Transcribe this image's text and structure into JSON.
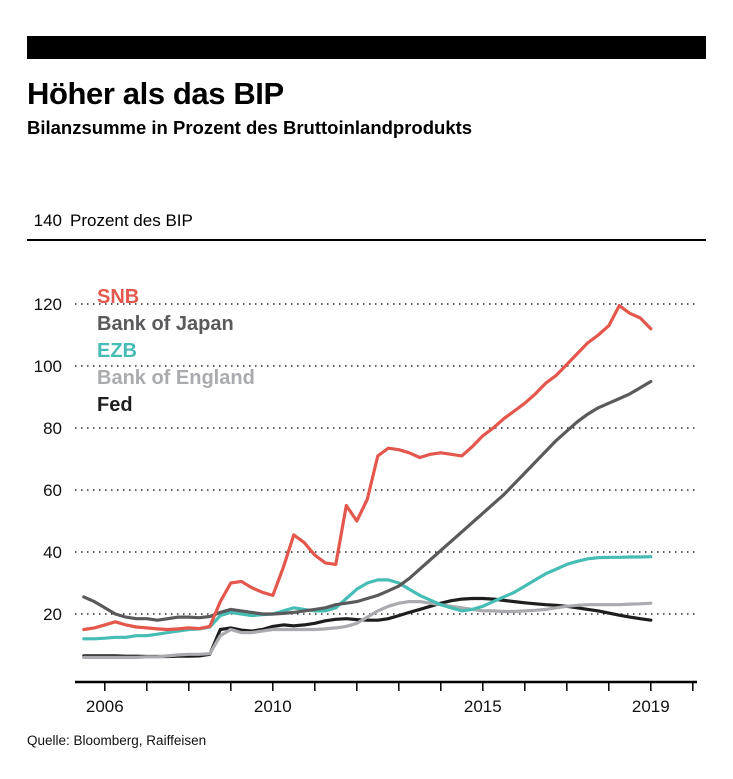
{
  "header": {
    "title": "Höher als das BIP",
    "subtitle": "Bilanzsumme in Prozent des Bruttoinlandprodukts"
  },
  "source": "Quelle: Bloomberg, Raiffeisen",
  "chart_data": {
    "type": "line",
    "title": "Höher als das BIP",
    "subtitle": "Bilanzsumme in Prozent des Bruttoinlandprodukts",
    "ylabel_top_tick": "140",
    "ylabel": "Prozent des BIP",
    "xlabel": "",
    "ylim": [
      0,
      140
    ],
    "yticks": [
      20,
      40,
      60,
      80,
      100,
      120,
      140
    ],
    "xticks": [
      2006,
      2010,
      2015,
      2019
    ],
    "x_axis_range": [
      2005.29,
      2020.1
    ],
    "x_start": 2005.5,
    "x_step": 0.25,
    "grid": "dotted horizontal lines",
    "legend_position": "top-left inside plot",
    "series": [
      {
        "name": "SNB",
        "color": "#e4574c",
        "values": [
          15,
          15.5,
          16.5,
          17.5,
          16.5,
          15.8,
          15.5,
          15.2,
          15,
          15.2,
          15.5,
          15.3,
          16,
          24,
          30,
          30.5,
          28.5,
          27,
          26,
          35,
          45.5,
          43,
          39,
          36.5,
          36,
          55,
          50,
          57,
          71,
          73.5,
          73,
          72,
          70.5,
          71.5,
          72,
          71.5,
          71,
          74,
          77.5,
          80,
          83,
          85.5,
          88,
          91,
          94.5,
          97,
          100.5,
          104,
          107.5,
          110,
          113,
          119.5,
          117,
          115.5,
          112
        ]
      },
      {
        "name": "Bank of Japan",
        "color": "#5a5a5c",
        "values": [
          25.5,
          24,
          22,
          20,
          19,
          18.5,
          18.5,
          18,
          18.5,
          19,
          19,
          18.8,
          19.2,
          20.5,
          21.5,
          21,
          20.5,
          20,
          20,
          20.2,
          20.5,
          21,
          21.5,
          22,
          23,
          23.5,
          24,
          25,
          26,
          27.5,
          29,
          31.5,
          34.5,
          37.5,
          40.5,
          43.5,
          46.5,
          49.5,
          52.5,
          55.5,
          58.5,
          62,
          65.5,
          69,
          72.5,
          76,
          79,
          82,
          84.5,
          86.5,
          88,
          89.5,
          91,
          93,
          95
        ]
      },
      {
        "name": "EZB",
        "color": "#46bdb4",
        "values": [
          12,
          12,
          12.2,
          12.5,
          12.5,
          13,
          13,
          13.5,
          14,
          14.5,
          15,
          15.2,
          15.8,
          19.5,
          20.5,
          20,
          19.5,
          19.8,
          20,
          21,
          22,
          21.5,
          21,
          21,
          22,
          25,
          28,
          30,
          31,
          31,
          30,
          28,
          26,
          24.5,
          23,
          22,
          21,
          21.5,
          22.5,
          24,
          25.5,
          27,
          29,
          31,
          33,
          34.5,
          36,
          37,
          37.8,
          38.2,
          38.3,
          38.3,
          38.4,
          38.4,
          38.5
        ]
      },
      {
        "name": "Bank of England",
        "color": "#a9abae",
        "values": [
          6,
          6,
          6,
          6,
          6,
          6,
          6.2,
          6.2,
          6.5,
          6.8,
          7,
          7,
          7.2,
          13,
          15,
          14,
          14,
          14.5,
          15,
          15,
          15,
          15,
          15,
          15.2,
          15.5,
          16,
          17,
          19,
          21,
          22.5,
          23.5,
          24,
          24,
          23.5,
          23,
          22.5,
          22,
          21.5,
          21,
          21,
          20.8,
          20.8,
          21,
          21.2,
          21.5,
          22,
          22.5,
          22.8,
          23,
          23,
          23,
          23,
          23.2,
          23.3,
          23.5
        ]
      },
      {
        "name": "Fed",
        "color": "#1e1e1e",
        "values": [
          6.5,
          6.5,
          6.5,
          6.5,
          6.4,
          6.4,
          6.3,
          6.3,
          6.3,
          6.4,
          6.4,
          6.5,
          7,
          15,
          15.5,
          14.8,
          14.5,
          15,
          16,
          16.5,
          16.2,
          16.5,
          17,
          17.8,
          18.3,
          18.5,
          18.2,
          18,
          18,
          18.5,
          19.5,
          20.5,
          21.5,
          22.5,
          23.5,
          24.3,
          24.8,
          25,
          25,
          24.8,
          24.4,
          24,
          23.6,
          23.3,
          23,
          22.8,
          22.5,
          22,
          21.5,
          21,
          20.3,
          19.6,
          19,
          18.5,
          18
        ]
      }
    ]
  }
}
